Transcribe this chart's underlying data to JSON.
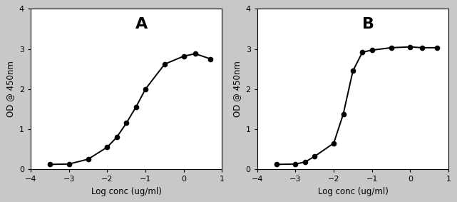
{
  "panel_A": {
    "label": "A",
    "x_data": [
      -3.5,
      -3.0,
      -2.5,
      -2.0,
      -1.75,
      -1.5,
      -1.25,
      -1.0,
      -0.5,
      0.0,
      0.3,
      0.7
    ],
    "y_data": [
      0.12,
      0.13,
      0.25,
      0.55,
      0.8,
      1.15,
      1.55,
      2.0,
      2.62,
      2.82,
      2.88,
      2.75
    ],
    "ylabel": "OD @ 450nm",
    "xlabel": "Log conc (ug/ml)",
    "ylim": [
      0,
      4
    ],
    "yticks": [
      0,
      1,
      2,
      3,
      4
    ],
    "xlim": [
      -4,
      1
    ],
    "xticks": [
      -4,
      -3,
      -2,
      -1,
      0,
      1
    ],
    "sigmoid_p0": [
      2.8,
      -1.3,
      2.5,
      0.1
    ]
  },
  "panel_B": {
    "label": "B",
    "x_data": [
      -3.5,
      -3.0,
      -2.75,
      -2.5,
      -2.0,
      -1.75,
      -1.5,
      -1.25,
      -1.0,
      -0.5,
      0.0,
      0.3,
      0.7
    ],
    "y_data": [
      0.12,
      0.13,
      0.18,
      0.32,
      0.65,
      1.38,
      2.45,
      2.92,
      2.97,
      3.03,
      3.05,
      3.03,
      3.03
    ],
    "ylabel": "OD @ 450nm",
    "xlabel": "Log conc (ug/ml)",
    "ylim": [
      0,
      4
    ],
    "yticks": [
      0,
      1,
      2,
      3,
      4
    ],
    "xlim": [
      -4,
      1
    ],
    "xticks": [
      -4,
      -3,
      -2,
      -1,
      0,
      1
    ],
    "sigmoid_p0": [
      3.0,
      -1.7,
      3.0,
      0.1
    ]
  },
  "figure_bg": "#c8c8c8",
  "panel_bg": "#ffffff",
  "line_color": "#000000",
  "marker_color": "#000000",
  "marker_size": 4.5,
  "line_width": 1.4,
  "label_fontsize": 16,
  "axis_fontsize": 8.5,
  "tick_fontsize": 8
}
